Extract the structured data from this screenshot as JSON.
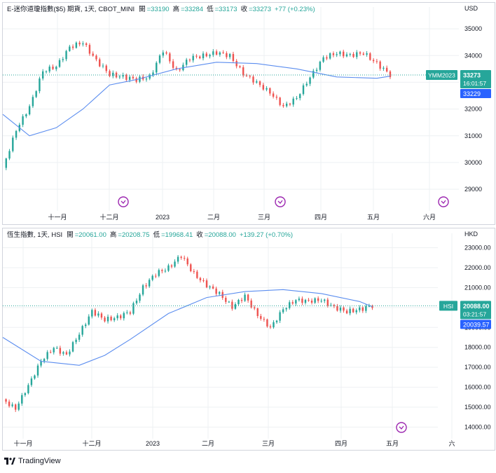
{
  "colors": {
    "up": "#26a69a",
    "down": "#ef5350",
    "ma": "#5b8def",
    "grid": "#eef0f3",
    "axis_text": "#131722",
    "event": "#9c27b0"
  },
  "footer": {
    "brand": "TradingView",
    "logo_icon": "tradingview-logo-icon"
  },
  "charts": [
    {
      "id": "top",
      "header": {
        "symbol": "E-迷你道瓊指數($5) 期貨, 1天, CBOT_MINI",
        "o_label": "開",
        "o": "=33190",
        "h_label": "高",
        "h": "=33284",
        "l_label": "低",
        "l": "=33173",
        "c_label": "收",
        "c": "=33273",
        "chg": "+77 (+0.23%)"
      },
      "currency": "USD",
      "price_tag": {
        "symbol": "YMM2023",
        "value": "33273",
        "countdown": "16:01:57",
        "ma": "33229"
      },
      "x_labels": [
        "十一月",
        "十二月",
        "2023",
        "二月",
        "三月",
        "四月",
        "五月",
        "六月"
      ],
      "y_labels": [
        "35000",
        "34000",
        "33000",
        "32000",
        "31000",
        "30000",
        "29000"
      ],
      "event_icons": 4
    },
    {
      "id": "bottom",
      "header": {
        "symbol": "恆生指數, 1天, HSI",
        "o_label": "開",
        "o": "=20061.00",
        "h_label": "高",
        "h": "=20208.75",
        "l_label": "低",
        "l": "=19968.41",
        "c_label": "收",
        "c": "=20088.00",
        "chg": "+139.27 (+0.70%)"
      },
      "currency": "HKD",
      "price_tag": {
        "symbol": "HSI",
        "value": "20088.00",
        "countdown": "03:21:57",
        "ma": "20039.57"
      },
      "x_labels": [
        "十一月",
        "十二月",
        "2023",
        "二月",
        "三月",
        "四月",
        "五月",
        "六"
      ],
      "y_labels": [
        "23000.00",
        "22000.00",
        "21000.00",
        "20000.00",
        "19000.00",
        "18000.00",
        "17000.00",
        "16000.00",
        "15000.00",
        "14000.00"
      ],
      "event_icons": 1
    }
  ],
  "chart_data": [
    {
      "type": "candlestick",
      "title": "E-迷你道瓊指數($5) 期貨, 1天, CBOT_MINI",
      "currency": "USD",
      "ylim": [
        28400,
        35500
      ],
      "x_range": [
        "2022-10-20",
        "2023-06-16"
      ],
      "legend": "none",
      "grid": true,
      "last": {
        "open": 33190,
        "high": 33284,
        "low": 33173,
        "close": 33273,
        "change": 77,
        "change_pct": 0.23
      },
      "ma_last": 33229,
      "closes": [
        {
          "date": "2022-10-20",
          "close": 29800
        },
        {
          "date": "2022-10-27",
          "close": 31200
        },
        {
          "date": "2022-11-03",
          "close": 32100
        },
        {
          "date": "2022-11-10",
          "close": 33400
        },
        {
          "date": "2022-11-17",
          "close": 33600
        },
        {
          "date": "2022-11-24",
          "close": 34300
        },
        {
          "date": "2022-12-01",
          "close": 34500
        },
        {
          "date": "2022-12-08",
          "close": 33800
        },
        {
          "date": "2022-12-15",
          "close": 33300
        },
        {
          "date": "2022-12-22",
          "close": 33200
        },
        {
          "date": "2022-12-29",
          "close": 33100
        },
        {
          "date": "2023-01-05",
          "close": 33200
        },
        {
          "date": "2023-01-12",
          "close": 34200
        },
        {
          "date": "2023-01-19",
          "close": 33400
        },
        {
          "date": "2023-01-26",
          "close": 33900
        },
        {
          "date": "2023-02-02",
          "close": 34000
        },
        {
          "date": "2023-02-09",
          "close": 34100
        },
        {
          "date": "2023-02-16",
          "close": 34000
        },
        {
          "date": "2023-02-23",
          "close": 33300
        },
        {
          "date": "2023-03-02",
          "close": 33000
        },
        {
          "date": "2023-03-09",
          "close": 32600
        },
        {
          "date": "2023-03-16",
          "close": 32100
        },
        {
          "date": "2023-03-23",
          "close": 32400
        },
        {
          "date": "2023-03-30",
          "close": 33200
        },
        {
          "date": "2023-04-06",
          "close": 33900
        },
        {
          "date": "2023-04-13",
          "close": 34100
        },
        {
          "date": "2023-04-20",
          "close": 34000
        },
        {
          "date": "2023-04-27",
          "close": 34100
        },
        {
          "date": "2023-05-04",
          "close": 33700
        },
        {
          "date": "2023-05-11",
          "close": 33273
        }
      ],
      "ma": [
        {
          "date": "2022-10-20",
          "value": 31800
        },
        {
          "date": "2022-11-03",
          "value": 31000
        },
        {
          "date": "2022-11-17",
          "value": 31300
        },
        {
          "date": "2022-12-01",
          "value": 32000
        },
        {
          "date": "2022-12-15",
          "value": 32900
        },
        {
          "date": "2022-12-29",
          "value": 33100
        },
        {
          "date": "2023-01-19",
          "value": 33500
        },
        {
          "date": "2023-02-09",
          "value": 33750
        },
        {
          "date": "2023-03-02",
          "value": 33700
        },
        {
          "date": "2023-03-23",
          "value": 33500
        },
        {
          "date": "2023-04-13",
          "value": 33200
        },
        {
          "date": "2023-05-04",
          "value": 33150
        },
        {
          "date": "2023-05-11",
          "value": 33229
        }
      ]
    },
    {
      "type": "candlestick",
      "title": "恆生指數, 1天, HSI",
      "currency": "HKD",
      "ylim": [
        13700,
        23300
      ],
      "x_range": [
        "2022-10-20",
        "2023-06-16"
      ],
      "legend": "none",
      "grid": true,
      "last": {
        "open": 20061.0,
        "high": 20208.75,
        "low": 19968.41,
        "close": 20088.0,
        "change": 139.27,
        "change_pct": 0.7
      },
      "ma_last": 20039.57,
      "closes": [
        {
          "date": "2022-10-20",
          "close": 15400
        },
        {
          "date": "2022-10-27",
          "close": 14900
        },
        {
          "date": "2022-11-03",
          "close": 16100
        },
        {
          "date": "2022-11-10",
          "close": 17300
        },
        {
          "date": "2022-11-17",
          "close": 18000
        },
        {
          "date": "2022-11-24",
          "close": 17600
        },
        {
          "date": "2022-12-01",
          "close": 18700
        },
        {
          "date": "2022-12-08",
          "close": 19800
        },
        {
          "date": "2022-12-15",
          "close": 19400
        },
        {
          "date": "2022-12-22",
          "close": 19500
        },
        {
          "date": "2022-12-29",
          "close": 19800
        },
        {
          "date": "2023-01-05",
          "close": 21000
        },
        {
          "date": "2023-01-12",
          "close": 21700
        },
        {
          "date": "2023-01-19",
          "close": 22000
        },
        {
          "date": "2023-01-26",
          "close": 22600
        },
        {
          "date": "2023-02-02",
          "close": 21700
        },
        {
          "date": "2023-02-09",
          "close": 21100
        },
        {
          "date": "2023-02-16",
          "close": 20700
        },
        {
          "date": "2023-02-23",
          "close": 20000
        },
        {
          "date": "2023-03-02",
          "close": 20600
        },
        {
          "date": "2023-03-09",
          "close": 19600
        },
        {
          "date": "2023-03-16",
          "close": 19000
        },
        {
          "date": "2023-03-23",
          "close": 19900
        },
        {
          "date": "2023-03-30",
          "close": 20400
        },
        {
          "date": "2023-04-06",
          "close": 20300
        },
        {
          "date": "2023-04-13",
          "close": 20400
        },
        {
          "date": "2023-04-20",
          "close": 20000
        },
        {
          "date": "2023-04-27",
          "close": 19800
        },
        {
          "date": "2023-05-04",
          "close": 19900
        },
        {
          "date": "2023-05-11",
          "close": 20088
        }
      ],
      "ma": [
        {
          "date": "2022-10-20",
          "value": 18500
        },
        {
          "date": "2022-11-10",
          "value": 17300
        },
        {
          "date": "2022-12-01",
          "value": 17100
        },
        {
          "date": "2022-12-15",
          "value": 17600
        },
        {
          "date": "2022-12-29",
          "value": 18400
        },
        {
          "date": "2023-01-19",
          "value": 19700
        },
        {
          "date": "2023-02-09",
          "value": 20500
        },
        {
          "date": "2023-03-02",
          "value": 20800
        },
        {
          "date": "2023-03-23",
          "value": 20900
        },
        {
          "date": "2023-04-13",
          "value": 20700
        },
        {
          "date": "2023-05-04",
          "value": 20300
        },
        {
          "date": "2023-05-11",
          "value": 20040
        }
      ]
    }
  ]
}
